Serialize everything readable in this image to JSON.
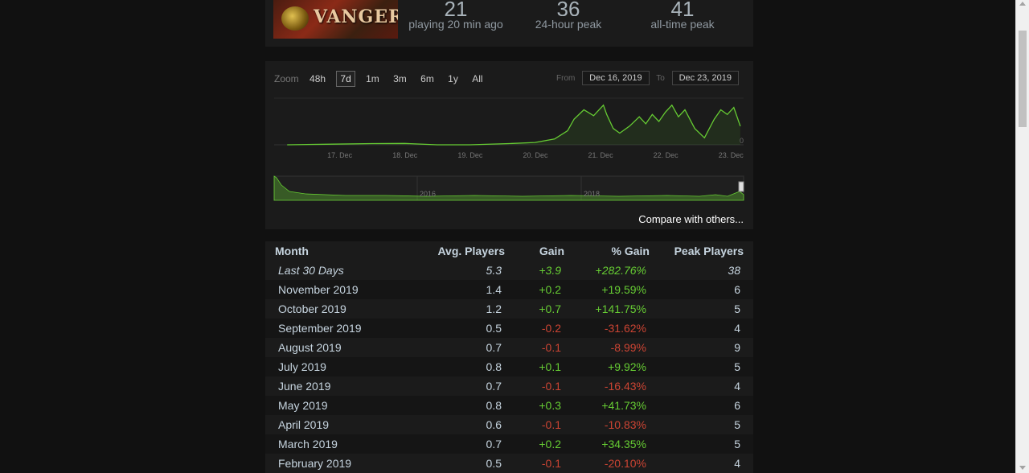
{
  "stats": [
    {
      "number": "21",
      "label": "playing 20 min ago"
    },
    {
      "number": "36",
      "label": "24-hour peak"
    },
    {
      "number": "41",
      "label": "all-time peak"
    }
  ],
  "game_logo_text": "VANGERS",
  "zoom": {
    "label": "Zoom",
    "options": [
      "48h",
      "7d",
      "1m",
      "3m",
      "6m",
      "1y",
      "All"
    ],
    "active": "7d"
  },
  "date_range": {
    "from_label": "From",
    "from_value": "Dec 16, 2019",
    "to_label": "To",
    "to_value": "Dec 23, 2019"
  },
  "compare_link": "Compare with others...",
  "chart_data": [
    {
      "type": "area",
      "x_ticks": [
        "17. Dec",
        "18. Dec",
        "19. Dec",
        "20. Dec",
        "21. Dec",
        "22. Dec",
        "23. Dec"
      ],
      "y_tick": "0",
      "series_color": "#66cc33",
      "x": [
        16.2,
        16.8,
        17.5,
        18.0,
        18.5,
        19.0,
        19.6,
        20.0,
        20.3,
        20.5,
        20.6,
        20.75,
        20.9,
        21.05,
        21.1,
        21.2,
        21.3,
        21.45,
        21.6,
        21.7,
        21.8,
        21.9,
        22.0,
        22.1,
        22.2,
        22.3,
        22.45,
        22.6,
        22.75,
        22.85,
        22.95,
        23.05,
        23.15
      ],
      "y": [
        0,
        0.5,
        1,
        1.2,
        0,
        0,
        1,
        2,
        5,
        12,
        22,
        30,
        25,
        34,
        26,
        14,
        10,
        16,
        24,
        18,
        26,
        20,
        28,
        34,
        24,
        30,
        14,
        6,
        22,
        30,
        26,
        32,
        16
      ]
    },
    {
      "type": "area",
      "x_ticks": [
        "2016",
        "2018"
      ],
      "series_color": "#66cc33"
    }
  ],
  "table": {
    "headers": [
      "Month",
      "Avg. Players",
      "Gain",
      "% Gain",
      "Peak Players"
    ],
    "rows": [
      {
        "month": "Last 30 Days",
        "avg": "5.3",
        "gain": "+3.9",
        "pct": "+282.76%",
        "peak": "38",
        "sign": "pos",
        "italic": true
      },
      {
        "month": "November 2019",
        "avg": "1.4",
        "gain": "+0.2",
        "pct": "+19.59%",
        "peak": "6",
        "sign": "pos"
      },
      {
        "month": "October 2019",
        "avg": "1.2",
        "gain": "+0.7",
        "pct": "+141.75%",
        "peak": "5",
        "sign": "pos"
      },
      {
        "month": "September 2019",
        "avg": "0.5",
        "gain": "-0.2",
        "pct": "-31.62%",
        "peak": "4",
        "sign": "neg"
      },
      {
        "month": "August 2019",
        "avg": "0.7",
        "gain": "-0.1",
        "pct": "-8.99%",
        "peak": "9",
        "sign": "neg"
      },
      {
        "month": "July 2019",
        "avg": "0.8",
        "gain": "+0.1",
        "pct": "+9.92%",
        "peak": "5",
        "sign": "pos"
      },
      {
        "month": "June 2019",
        "avg": "0.7",
        "gain": "-0.1",
        "pct": "-16.43%",
        "peak": "4",
        "sign": "neg"
      },
      {
        "month": "May 2019",
        "avg": "0.8",
        "gain": "+0.3",
        "pct": "+41.73%",
        "peak": "6",
        "sign": "pos"
      },
      {
        "month": "April 2019",
        "avg": "0.6",
        "gain": "-0.1",
        "pct": "-10.83%",
        "peak": "5",
        "sign": "neg"
      },
      {
        "month": "March 2019",
        "avg": "0.7",
        "gain": "+0.2",
        "pct": "+34.35%",
        "peak": "5",
        "sign": "pos"
      },
      {
        "month": "February 2019",
        "avg": "0.5",
        "gain": "-0.1",
        "pct": "-20.10%",
        "peak": "4",
        "sign": "neg"
      }
    ]
  }
}
